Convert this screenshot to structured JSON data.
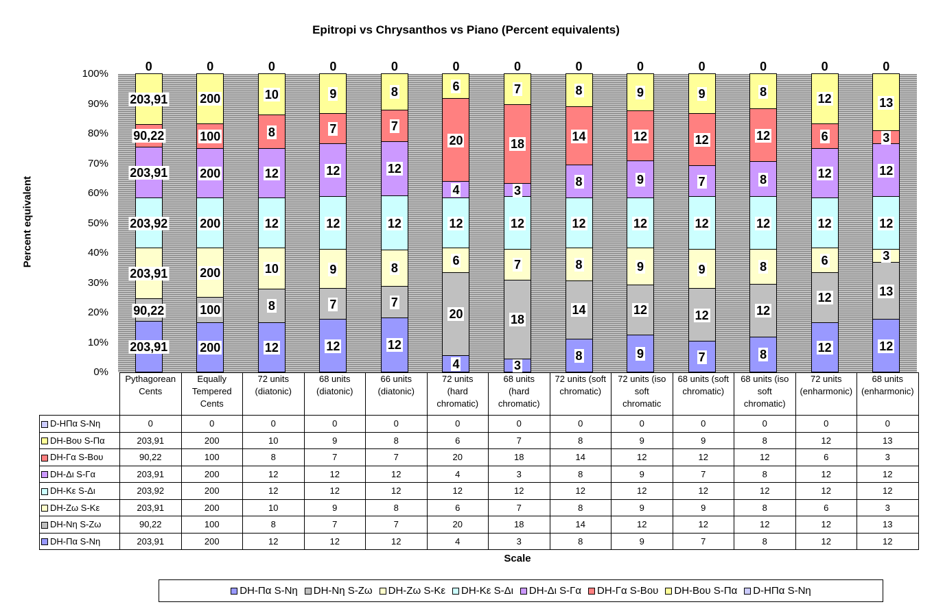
{
  "chart_data": {
    "type": "bar",
    "stacked": "percent",
    "title": "Epitropi vs Chrysanthos vs Piano (Percent equivalents)",
    "xlabel": "Scale",
    "ylabel": "Percent equivalent",
    "ylim": [
      0,
      100
    ],
    "yticks": [
      "0%",
      "10%",
      "20%",
      "30%",
      "40%",
      "50%",
      "60%",
      "70%",
      "80%",
      "90%",
      "100%"
    ],
    "legend_position": "bottom",
    "categories": [
      "Pythagorean\nCents",
      "Equally\nTempered\nCents",
      "72 units\n(diatonic)",
      "68 units\n(diatonic)",
      "66 units\n(diatonic)",
      "72 units\n(hard\nchromatic)",
      "68 units\n(hard\nchromatic)",
      "72 units (soft\nchromatic)",
      "72 units (iso\nsoft\nchromatic",
      "68 units (soft\nchromatic)",
      "68 units (iso\nsoft\nchromatic)",
      "72 units\n(enharmonic)",
      "68 units\n(enharmonic)"
    ],
    "series": [
      {
        "name": "DH-Πα S-Nη",
        "color": "#9999ff",
        "values": [
          "203,91",
          "200",
          "12",
          "12",
          "12",
          "4",
          "3",
          "8",
          "9",
          "7",
          "8",
          "12",
          "12"
        ]
      },
      {
        "name": "DH-Nη S-Ζω",
        "color": "#c0c0c0",
        "values": [
          "90,22",
          "100",
          "8",
          "7",
          "7",
          "20",
          "18",
          "14",
          "12",
          "12",
          "12",
          "12",
          "13"
        ]
      },
      {
        "name": "DH-Ζω S-Kε",
        "color": "#ffffcc",
        "values": [
          "203,91",
          "200",
          "10",
          "9",
          "8",
          "6",
          "7",
          "8",
          "9",
          "9",
          "8",
          "6",
          "3"
        ]
      },
      {
        "name": "DH-Kε S-Δι",
        "color": "#ccffff",
        "values": [
          "203,92",
          "200",
          "12",
          "12",
          "12",
          "12",
          "12",
          "12",
          "12",
          "12",
          "12",
          "12",
          "12"
        ]
      },
      {
        "name": "DH-Δι S-Γα",
        "color": "#cc99ff",
        "values": [
          "203,91",
          "200",
          "12",
          "12",
          "12",
          "4",
          "3",
          "8",
          "9",
          "7",
          "8",
          "12",
          "12"
        ]
      },
      {
        "name": "DH-Γα S-Bου",
        "color": "#ff8080",
        "values": [
          "90,22",
          "100",
          "8",
          "7",
          "7",
          "20",
          "18",
          "14",
          "12",
          "12",
          "12",
          "6",
          "3"
        ]
      },
      {
        "name": "DH-Bου S-Πα",
        "color": "#ffff99",
        "values": [
          "203,91",
          "200",
          "10",
          "9",
          "8",
          "6",
          "7",
          "8",
          "9",
          "9",
          "8",
          "12",
          "13"
        ]
      },
      {
        "name": "D-HΠα S-Nη",
        "color": "#ccccff",
        "values": [
          "0",
          "0",
          "0",
          "0",
          "0",
          "0",
          "0",
          "0",
          "0",
          "0",
          "0",
          "0",
          "0"
        ]
      }
    ]
  }
}
